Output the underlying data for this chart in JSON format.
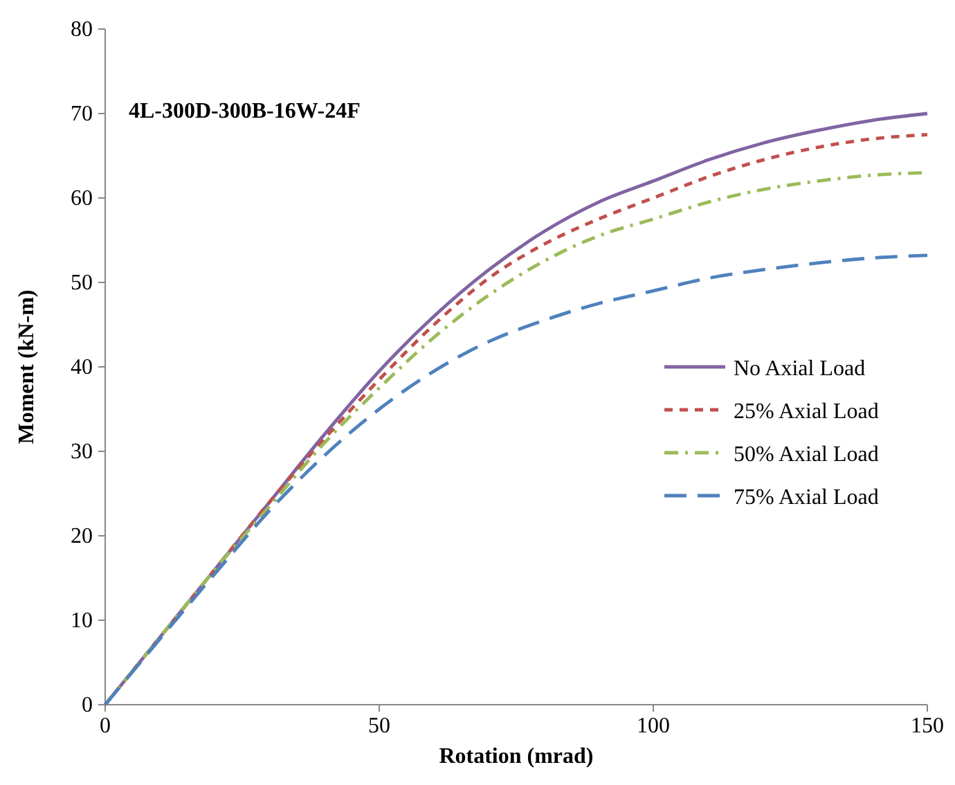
{
  "chart_data": {
    "type": "line",
    "title": "4L-300D-300B-16W-24F",
    "xlabel": "Rotation (mrad)",
    "ylabel": "Moment (kN-m)",
    "x": [
      0,
      10,
      20,
      30,
      40,
      50,
      60,
      70,
      80,
      90,
      100,
      110,
      120,
      130,
      140,
      150
    ],
    "series": [
      {
        "name": "No Axial Load",
        "color": "#8064a2",
        "line_style": "solid",
        "values": [
          0,
          8,
          16,
          24,
          32,
          39.5,
          46,
          51.5,
          56,
          59.5,
          62,
          64.5,
          66.5,
          68,
          69.2,
          70
        ]
      },
      {
        "name": "25% Axial Load",
        "color": "#c0504d",
        "line_style": "dashed",
        "values": [
          0,
          8,
          16,
          24,
          31.5,
          38.5,
          45,
          50.5,
          54.5,
          57.5,
          60,
          62.5,
          64.5,
          66,
          67,
          67.5
        ]
      },
      {
        "name": "50% Axial Load",
        "color": "#9bbb59",
        "line_style": "dashdot",
        "values": [
          0,
          8,
          16,
          23.5,
          31,
          37.5,
          43.5,
          48.5,
          52.5,
          55.5,
          57.5,
          59.5,
          61,
          62,
          62.7,
          63
        ]
      },
      {
        "name": "75% Axial Load",
        "color": "#4f81bd",
        "line_style": "longdash",
        "values": [
          0,
          7.8,
          15.5,
          23,
          29.5,
          35,
          39.5,
          43,
          45.5,
          47.5,
          49,
          50.5,
          51.5,
          52.3,
          52.9,
          53.2
        ]
      }
    ],
    "xlim": [
      0,
      150
    ],
    "xticks": [
      0,
      50,
      100,
      150
    ],
    "ylim": [
      0,
      80
    ],
    "yticks": [
      0,
      10,
      20,
      30,
      40,
      50,
      60,
      70,
      80
    ],
    "grid": false,
    "legend": "right",
    "marker": "none"
  }
}
